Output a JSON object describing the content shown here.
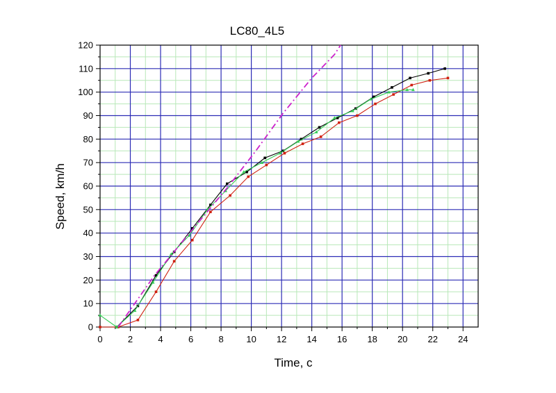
{
  "chart_data": {
    "type": "line",
    "title": "LC80_4L5",
    "xlabel": "Time, c",
    "ylabel": "Speed, km/h",
    "xlim": [
      0,
      25
    ],
    "ylim": [
      0,
      120
    ],
    "x_ticks": [
      0,
      2,
      4,
      6,
      8,
      10,
      12,
      14,
      16,
      18,
      20,
      22,
      24
    ],
    "y_ticks": [
      0,
      10,
      20,
      30,
      40,
      50,
      60,
      70,
      80,
      90,
      100,
      110,
      120
    ],
    "grid": {
      "major": true,
      "minor": true
    },
    "colors": {
      "major_grid": "#2b2bb5",
      "minor_grid": "#b8e8b8",
      "black_series": "#000000",
      "red_series": "#d02010",
      "green_series": "#33cc55",
      "dashdot_series": "#cc22cc"
    },
    "series": [
      {
        "color": "#000000",
        "marker": "square",
        "points": [
          [
            1.1,
            0
          ],
          [
            2.5,
            9
          ],
          [
            3.7,
            22
          ],
          [
            4.9,
            32
          ],
          [
            6.1,
            42
          ],
          [
            7.3,
            52
          ],
          [
            8.4,
            61
          ],
          [
            9.7,
            66
          ],
          [
            10.9,
            72
          ],
          [
            12.1,
            75
          ],
          [
            13.3,
            80
          ],
          [
            14.5,
            85
          ],
          [
            15.7,
            89
          ],
          [
            16.9,
            93
          ],
          [
            18.1,
            98
          ],
          [
            19.3,
            102
          ],
          [
            20.5,
            106
          ],
          [
            21.7,
            108
          ],
          [
            22.8,
            110
          ]
        ]
      },
      {
        "color": "#d02010",
        "marker": "square",
        "points": [
          [
            0,
            0
          ],
          [
            1.2,
            0
          ],
          [
            2.5,
            3
          ],
          [
            3.7,
            15
          ],
          [
            4.9,
            28
          ],
          [
            6.1,
            37
          ],
          [
            7.3,
            49
          ],
          [
            8.6,
            56
          ],
          [
            9.8,
            64
          ],
          [
            11.0,
            69
          ],
          [
            12.2,
            74
          ],
          [
            13.4,
            78
          ],
          [
            14.6,
            81
          ],
          [
            15.8,
            87
          ],
          [
            17.0,
            90
          ],
          [
            18.2,
            95
          ],
          [
            19.4,
            99
          ],
          [
            20.6,
            103
          ],
          [
            21.8,
            105
          ],
          [
            23.0,
            106
          ]
        ]
      },
      {
        "color": "#33cc55",
        "marker": "triangle",
        "points": [
          [
            0,
            5
          ],
          [
            1.1,
            0
          ],
          [
            2.3,
            7
          ],
          [
            3.5,
            19
          ],
          [
            4.7,
            31
          ],
          [
            5.9,
            39
          ],
          [
            7.1,
            50
          ],
          [
            8.3,
            58
          ],
          [
            9.5,
            66
          ],
          [
            10.7,
            70
          ],
          [
            11.9,
            74
          ],
          [
            13.1,
            79
          ],
          [
            14.3,
            83
          ],
          [
            15.5,
            89
          ],
          [
            16.7,
            92
          ],
          [
            17.9,
            97
          ],
          [
            19.1,
            100
          ],
          [
            20.3,
            101
          ],
          [
            20.7,
            101
          ]
        ]
      },
      {
        "color": "#cc22cc",
        "style": "dash-dot",
        "points": [
          [
            1.2,
            0
          ],
          [
            3.6,
            22
          ],
          [
            6.3,
            43
          ],
          [
            8.5,
            60
          ],
          [
            10.3,
            75
          ],
          [
            12.1,
            91
          ],
          [
            14.0,
            106
          ],
          [
            15.5,
            116
          ],
          [
            15.9,
            120
          ]
        ]
      }
    ]
  }
}
